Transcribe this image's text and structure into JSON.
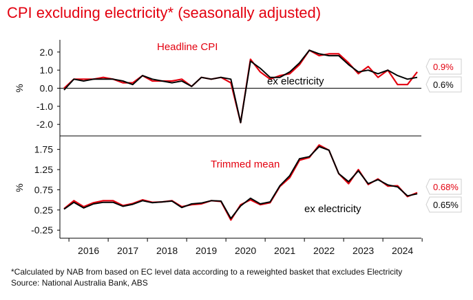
{
  "title": "CPI excluding electricity* (seasonally adjusted)",
  "footnote": "*Calculated by NAB from based on EC level data according to a reweighted basket that excludes Electricity",
  "source": "Source: National Australia Bank, ABS",
  "colors": {
    "red": "#e3000f",
    "black": "#000000",
    "title": "#e3000f"
  },
  "chart_data": [
    {
      "type": "line",
      "panel": "top",
      "ylabel": "%",
      "ylim": [
        -2.6,
        2.6
      ],
      "yticks": [
        2.0,
        1.0,
        0.0,
        -1.0,
        -2.0
      ],
      "ytick_labels": [
        "2.0",
        "1.0",
        "0.0",
        "-1.0",
        "-2.0"
      ],
      "xlabels": [
        "2016",
        "2017",
        "2018",
        "2019",
        "2020",
        "2021",
        "2022",
        "2023",
        "2024"
      ],
      "x": [
        2015.75,
        2016.0,
        2016.25,
        2016.5,
        2016.75,
        2017.0,
        2017.25,
        2017.5,
        2017.75,
        2018.0,
        2018.25,
        2018.5,
        2018.75,
        2019.0,
        2019.25,
        2019.5,
        2019.75,
        2020.0,
        2020.25,
        2020.5,
        2020.75,
        2021.0,
        2021.25,
        2021.5,
        2021.75,
        2022.0,
        2022.25,
        2022.5,
        2022.75,
        2023.0,
        2023.25,
        2023.5,
        2023.75,
        2024.0,
        2024.25,
        2024.5,
        2024.75
      ],
      "annotations": [
        "Headline CPI",
        "ex electricity"
      ],
      "series": [
        {
          "name": "Headline CPI",
          "color": "#e3000f",
          "values": [
            0.0,
            0.5,
            0.5,
            0.5,
            0.6,
            0.5,
            0.3,
            0.3,
            0.7,
            0.4,
            0.4,
            0.4,
            0.5,
            0.1,
            0.6,
            0.5,
            0.6,
            0.3,
            -1.9,
            1.6,
            0.9,
            0.5,
            0.7,
            0.8,
            1.3,
            2.1,
            1.8,
            1.9,
            1.9,
            1.4,
            0.8,
            1.2,
            0.6,
            1.0,
            0.2,
            0.2,
            0.9
          ]
        },
        {
          "name": "ex electricity",
          "color": "#000000",
          "values": [
            -0.1,
            0.5,
            0.4,
            0.5,
            0.5,
            0.5,
            0.4,
            0.2,
            0.7,
            0.5,
            0.4,
            0.3,
            0.4,
            0.1,
            0.6,
            0.5,
            0.6,
            0.5,
            -1.9,
            1.5,
            1.1,
            0.6,
            0.6,
            0.9,
            1.4,
            2.1,
            1.9,
            1.8,
            1.8,
            1.3,
            0.9,
            1.0,
            0.8,
            1.0,
            0.7,
            0.5,
            0.6
          ]
        }
      ],
      "end_labels": [
        {
          "text": "0.9%",
          "color": "#e3000f"
        },
        {
          "text": "0.6%",
          "color": "#000000"
        }
      ]
    },
    {
      "type": "line",
      "panel": "bottom",
      "ylabel": "%",
      "ylim": [
        -0.45,
        2.05
      ],
      "yticks": [
        1.75,
        1.25,
        0.75,
        0.25,
        -0.25
      ],
      "ytick_labels": [
        "1.75",
        "1.25",
        "0.75",
        "0.25",
        "-0.25"
      ],
      "xlabels": [
        "2016",
        "2017",
        "2018",
        "2019",
        "2020",
        "2021",
        "2022",
        "2023",
        "2024"
      ],
      "x": [
        2015.75,
        2016.0,
        2016.25,
        2016.5,
        2016.75,
        2017.0,
        2017.25,
        2017.5,
        2017.75,
        2018.0,
        2018.25,
        2018.5,
        2018.75,
        2019.0,
        2019.25,
        2019.5,
        2019.75,
        2020.0,
        2020.25,
        2020.5,
        2020.75,
        2021.0,
        2021.25,
        2021.5,
        2021.75,
        2022.0,
        2022.25,
        2022.5,
        2022.75,
        2023.0,
        2023.25,
        2023.5,
        2023.75,
        2024.0,
        2024.25,
        2024.5,
        2024.75
      ],
      "annotations": [
        "Trimmed mean",
        "ex electricity"
      ],
      "series": [
        {
          "name": "Trimmed mean",
          "color": "#e3000f",
          "values": [
            0.28,
            0.48,
            0.33,
            0.43,
            0.48,
            0.48,
            0.36,
            0.41,
            0.5,
            0.44,
            0.45,
            0.48,
            0.33,
            0.38,
            0.4,
            0.48,
            0.46,
            0.0,
            0.38,
            0.5,
            0.38,
            0.43,
            0.83,
            1.05,
            1.48,
            1.55,
            1.86,
            1.73,
            1.15,
            0.9,
            1.25,
            0.88,
            1.02,
            0.84,
            0.85,
            0.58,
            0.68
          ]
        },
        {
          "name": "ex electricity",
          "color": "#000000",
          "values": [
            0.27,
            0.44,
            0.3,
            0.4,
            0.44,
            0.44,
            0.34,
            0.39,
            0.48,
            0.43,
            0.45,
            0.47,
            0.31,
            0.4,
            0.42,
            0.48,
            0.47,
            0.04,
            0.35,
            0.54,
            0.4,
            0.45,
            0.85,
            1.1,
            1.52,
            1.57,
            1.82,
            1.73,
            1.15,
            0.95,
            1.22,
            0.9,
            1.0,
            0.87,
            0.82,
            0.6,
            0.65
          ]
        }
      ],
      "end_labels": [
        {
          "text": "0.68%",
          "color": "#e3000f"
        },
        {
          "text": "0.65%",
          "color": "#000000"
        }
      ]
    }
  ]
}
